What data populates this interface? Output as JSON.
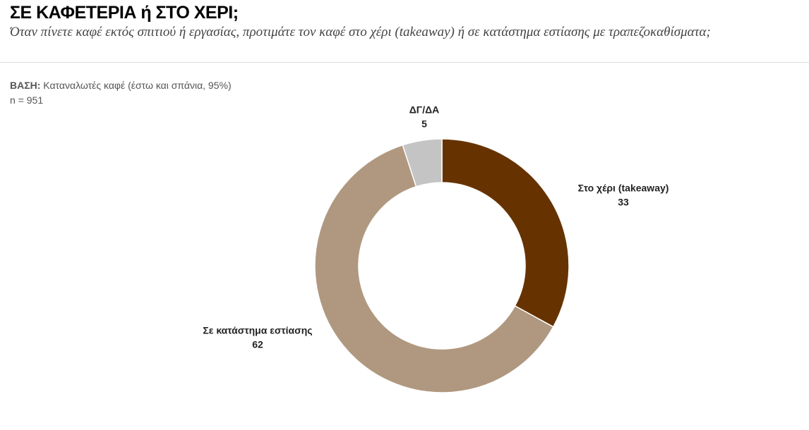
{
  "chart_data": {
    "type": "donut",
    "title": "ΣΕ ΚΑΦΕΤΕΡΙΑ ή ΣΤΟ ΧΕΡΙ;",
    "subtitle": "Όταν πίνετε καφέ εκτός σπιτιού ή εργασίας, προτιμάτε τον καφέ στο χέρι (takeaway) ή σε κατάστημα εστίασης με τραπεζοκαθίσματα;",
    "base_label": "ΒΑΣΗ:",
    "base_text": "Καταναλωτές καφέ (έστω και σπάνια, 95%)",
    "sample": "n = 951",
    "categories": [
      "Στο χέρι (takeaway)",
      "Σε κατάστημα εστίασης",
      "ΔΓ/ΔΑ"
    ],
    "values": [
      33,
      62,
      5
    ],
    "colors": [
      "#663300",
      "#b09880",
      "#c4c4c4"
    ]
  }
}
